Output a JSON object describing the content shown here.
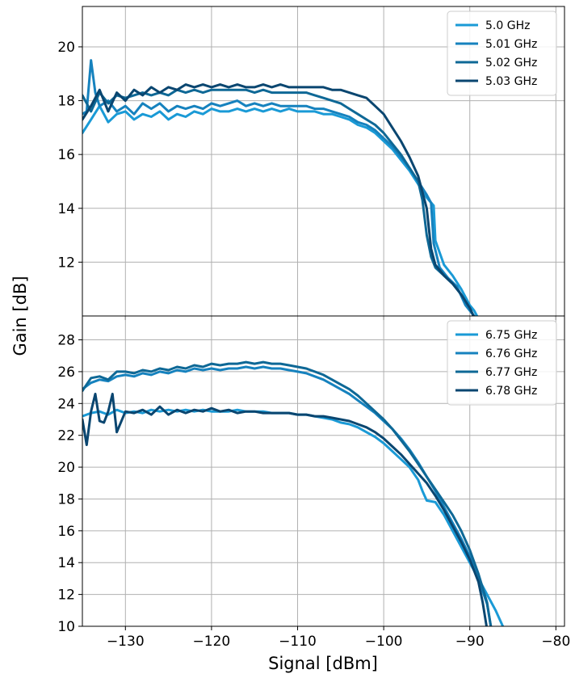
{
  "figure": {
    "ylabel": "Gain [dB]",
    "xlabel": "Signal [dBm]"
  },
  "chart_data": [
    {
      "type": "line",
      "xlim": [
        -135,
        -79
      ],
      "ylim": [
        10.0,
        21.5
      ],
      "xticks": [
        -130,
        -120,
        -110,
        -100,
        -90,
        -80
      ],
      "xtick_labels": [
        "−130",
        "−120",
        "−110",
        "−100",
        "−90",
        "−80"
      ],
      "yticks": [
        12,
        14,
        16,
        18,
        20
      ],
      "ytick_labels": [
        "12",
        "14",
        "16",
        "18",
        "20"
      ],
      "grid": true,
      "legend_position": "top-right",
      "series": [
        {
          "name": "5.0 GHz",
          "color": "#1a9ad6",
          "x": [
            -135,
            -134,
            -133,
            -132,
            -131,
            -130,
            -129,
            -128,
            -127,
            -126,
            -125,
            -124,
            -123,
            -122,
            -121,
            -120,
            -119,
            -118,
            -117,
            -116,
            -115,
            -114,
            -113,
            -112,
            -111,
            -110,
            -109,
            -108,
            -107,
            -106,
            -105,
            -104,
            -103,
            -102,
            -101,
            -100,
            -99,
            -98,
            -97,
            -96,
            -95,
            -94.2,
            -94,
            -93,
            -92,
            -91,
            -90,
            -89.5,
            -88.5
          ],
          "y": [
            16.8,
            17.3,
            17.8,
            17.2,
            17.5,
            17.6,
            17.3,
            17.5,
            17.4,
            17.6,
            17.3,
            17.5,
            17.4,
            17.6,
            17.5,
            17.7,
            17.6,
            17.6,
            17.7,
            17.6,
            17.7,
            17.6,
            17.7,
            17.6,
            17.7,
            17.6,
            17.6,
            17.6,
            17.5,
            17.5,
            17.4,
            17.3,
            17.1,
            17.0,
            16.8,
            16.5,
            16.2,
            15.8,
            15.4,
            14.9,
            14.4,
            14.1,
            12.8,
            11.9,
            11.5,
            11.0,
            10.4,
            10.2,
            9.6
          ]
        },
        {
          "name": "5.01 GHz",
          "color": "#1682be",
          "x": [
            -135,
            -134.5,
            -134,
            -133.5,
            -133,
            -132,
            -131,
            -130,
            -129,
            -128,
            -127,
            -126,
            -125,
            -124,
            -123,
            -122,
            -121,
            -120,
            -119,
            -118,
            -117,
            -116,
            -115,
            -114,
            -113,
            -112,
            -111,
            -110,
            -109,
            -108,
            -107,
            -106,
            -105,
            -104,
            -103,
            -102,
            -101,
            -100,
            -99,
            -98,
            -97,
            -96,
            -95,
            -94.5,
            -94.2,
            -93.5,
            -92.5,
            -91.5,
            -90.5,
            -89.5,
            -88.5
          ],
          "y": [
            17.5,
            17.6,
            19.5,
            18.3,
            17.8,
            18.0,
            17.6,
            17.8,
            17.5,
            17.9,
            17.7,
            17.9,
            17.6,
            17.8,
            17.7,
            17.8,
            17.7,
            17.9,
            17.8,
            17.9,
            18.0,
            17.8,
            17.9,
            17.8,
            17.9,
            17.8,
            17.8,
            17.8,
            17.8,
            17.7,
            17.7,
            17.6,
            17.5,
            17.4,
            17.2,
            17.1,
            16.9,
            16.6,
            16.3,
            15.9,
            15.5,
            15.0,
            14.5,
            14.2,
            12.7,
            11.8,
            11.4,
            11.1,
            10.4,
            10.0,
            9.6
          ]
        },
        {
          "name": "5.02 GHz",
          "color": "#0e6896",
          "x": [
            -135,
            -134,
            -133,
            -132,
            -131,
            -130,
            -129,
            -128,
            -127,
            -126,
            -125,
            -124,
            -123,
            -122,
            -121,
            -120,
            -119,
            -118,
            -117,
            -116,
            -115,
            -114,
            -113,
            -112,
            -111,
            -110,
            -109,
            -108,
            -107,
            -106,
            -105,
            -104,
            -103,
            -102,
            -101,
            -100,
            -99,
            -98,
            -97,
            -96,
            -95.5,
            -95,
            -94.5,
            -94,
            -93,
            -92,
            -91,
            -90,
            -89
          ],
          "y": [
            18.2,
            17.6,
            18.3,
            17.9,
            18.2,
            18.1,
            18.2,
            18.3,
            18.2,
            18.3,
            18.2,
            18.4,
            18.3,
            18.4,
            18.3,
            18.4,
            18.4,
            18.4,
            18.4,
            18.4,
            18.3,
            18.4,
            18.3,
            18.3,
            18.3,
            18.3,
            18.3,
            18.2,
            18.1,
            18.0,
            17.9,
            17.7,
            17.5,
            17.3,
            17.1,
            16.8,
            16.4,
            16.0,
            15.5,
            15.0,
            14.3,
            13.0,
            12.2,
            11.8,
            11.5,
            11.2,
            10.8,
            10.3,
            9.6
          ]
        },
        {
          "name": "5.03 GHz",
          "color": "#0a4670",
          "x": [
            -135,
            -134,
            -133,
            -132,
            -131,
            -130,
            -129,
            -128,
            -127,
            -126,
            -125,
            -124,
            -123,
            -122,
            -121,
            -120,
            -119,
            -118,
            -117,
            -116,
            -115,
            -114,
            -113,
            -112,
            -111,
            -110,
            -109,
            -108,
            -107,
            -106,
            -105,
            -104,
            -103,
            -102,
            -101,
            -100,
            -99,
            -98,
            -97,
            -96,
            -95.5,
            -95,
            -94.5,
            -94,
            -93,
            -92,
            -91,
            -90,
            -89
          ],
          "y": [
            17.3,
            17.8,
            18.4,
            17.6,
            18.3,
            18.0,
            18.4,
            18.2,
            18.5,
            18.3,
            18.5,
            18.4,
            18.6,
            18.5,
            18.6,
            18.5,
            18.6,
            18.5,
            18.6,
            18.5,
            18.5,
            18.6,
            18.5,
            18.6,
            18.5,
            18.5,
            18.5,
            18.5,
            18.5,
            18.4,
            18.4,
            18.3,
            18.2,
            18.1,
            17.8,
            17.5,
            17.0,
            16.5,
            15.9,
            15.2,
            14.6,
            14.0,
            12.5,
            11.9,
            11.5,
            11.2,
            10.8,
            10.3,
            9.6
          ]
        }
      ]
    },
    {
      "type": "line",
      "xlim": [
        -135,
        -79
      ],
      "ylim": [
        10,
        29.5
      ],
      "xticks": [
        -130,
        -120,
        -110,
        -100,
        -90,
        -80
      ],
      "xtick_labels": [
        "−130",
        "−120",
        "−110",
        "−100",
        "−90",
        "−80"
      ],
      "yticks": [
        10,
        12,
        14,
        16,
        18,
        20,
        22,
        24,
        26,
        28
      ],
      "ytick_labels": [
        "10",
        "12",
        "14",
        "16",
        "18",
        "20",
        "22",
        "24",
        "26",
        "28"
      ],
      "grid": true,
      "legend_position": "top-right",
      "series": [
        {
          "name": "6.75 GHz",
          "color": "#1a9ad6",
          "x": [
            -135,
            -134,
            -133,
            -132,
            -131,
            -130,
            -129,
            -128,
            -127,
            -126,
            -125,
            -124,
            -123,
            -122,
            -121,
            -120,
            -119,
            -118,
            -117,
            -116,
            -115,
            -114,
            -113,
            -112,
            -111,
            -110,
            -109,
            -108,
            -107,
            -106,
            -105,
            -104,
            -103,
            -102,
            -101,
            -100,
            -99,
            -98,
            -97,
            -96,
            -95.5,
            -95,
            -94,
            -93,
            -92,
            -91,
            -90,
            -89,
            -88,
            -87,
            -86
          ],
          "y": [
            23.2,
            23.4,
            23.5,
            23.3,
            23.6,
            23.4,
            23.5,
            23.4,
            23.6,
            23.5,
            23.6,
            23.5,
            23.6,
            23.5,
            23.6,
            23.5,
            23.5,
            23.5,
            23.6,
            23.5,
            23.5,
            23.5,
            23.4,
            23.4,
            23.4,
            23.3,
            23.3,
            23.2,
            23.1,
            23.0,
            22.8,
            22.7,
            22.5,
            22.2,
            21.9,
            21.5,
            21.0,
            20.5,
            20.0,
            19.2,
            18.5,
            17.9,
            17.8,
            17.0,
            16.0,
            15.0,
            14.0,
            13.0,
            12.0,
            11.0,
            9.8
          ]
        },
        {
          "name": "6.76 GHz",
          "color": "#1682be",
          "x": [
            -135,
            -134,
            -133,
            -132,
            -131,
            -130,
            -129,
            -128,
            -127,
            -126,
            -125,
            -124,
            -123,
            -122,
            -121,
            -120,
            -119,
            -118,
            -117,
            -116,
            -115,
            -114,
            -113,
            -112,
            -111,
            -110,
            -109,
            -108,
            -107,
            -106,
            -105,
            -104,
            -103,
            -102,
            -101,
            -100,
            -99,
            -98,
            -97,
            -96,
            -95,
            -94,
            -93,
            -92,
            -91,
            -90,
            -89,
            -88,
            -87.5
          ],
          "y": [
            24.9,
            25.3,
            25.5,
            25.4,
            25.7,
            25.8,
            25.7,
            25.9,
            25.8,
            26.0,
            25.9,
            26.1,
            26.0,
            26.2,
            26.1,
            26.2,
            26.1,
            26.2,
            26.2,
            26.3,
            26.2,
            26.3,
            26.2,
            26.2,
            26.1,
            26.0,
            25.9,
            25.7,
            25.5,
            25.2,
            24.9,
            24.6,
            24.2,
            23.8,
            23.4,
            22.9,
            22.4,
            21.8,
            21.1,
            20.3,
            19.4,
            18.5,
            17.5,
            16.5,
            15.5,
            14.4,
            13.0,
            11.4,
            9.8
          ]
        },
        {
          "name": "6.77 GHz",
          "color": "#0e6896",
          "x": [
            -135,
            -134,
            -133,
            -132,
            -131,
            -130,
            -129,
            -128,
            -127,
            -126,
            -125,
            -124,
            -123,
            -122,
            -121,
            -120,
            -119,
            -118,
            -117,
            -116,
            -115,
            -114,
            -113,
            -112,
            -111,
            -110,
            -109,
            -108,
            -107,
            -106,
            -105,
            -104,
            -103,
            -102,
            -101,
            -100,
            -99,
            -98,
            -97,
            -96,
            -95,
            -94,
            -93,
            -92,
            -91,
            -90,
            -89,
            -88,
            -87.5
          ],
          "y": [
            24.8,
            25.6,
            25.7,
            25.5,
            26.0,
            26.0,
            25.9,
            26.1,
            26.0,
            26.2,
            26.1,
            26.3,
            26.2,
            26.4,
            26.3,
            26.5,
            26.4,
            26.5,
            26.5,
            26.6,
            26.5,
            26.6,
            26.5,
            26.5,
            26.4,
            26.3,
            26.2,
            26.0,
            25.8,
            25.5,
            25.2,
            24.9,
            24.5,
            24.0,
            23.5,
            23.0,
            22.4,
            21.7,
            21.0,
            20.2,
            19.4,
            18.6,
            17.8,
            17.0,
            16.0,
            14.8,
            13.3,
            11.5,
            9.8
          ]
        },
        {
          "name": "6.78 GHz",
          "color": "#0a4670",
          "x": [
            -135,
            -134.5,
            -134,
            -133.5,
            -133,
            -132.5,
            -132,
            -131.5,
            -131,
            -130,
            -129,
            -128,
            -127,
            -126,
            -125,
            -124,
            -123,
            -122,
            -121,
            -120,
            -119,
            -118,
            -117,
            -116,
            -115,
            -114,
            -113,
            -112,
            -111,
            -110,
            -109,
            -108,
            -107,
            -106,
            -105,
            -104,
            -103,
            -102,
            -101,
            -100,
            -99,
            -98,
            -97,
            -96,
            -95,
            -94,
            -93,
            -92,
            -91,
            -90,
            -89,
            -88.5,
            -88
          ],
          "y": [
            23.0,
            21.4,
            23.5,
            24.6,
            22.9,
            22.8,
            23.5,
            24.6,
            22.2,
            23.5,
            23.4,
            23.6,
            23.3,
            23.8,
            23.3,
            23.6,
            23.4,
            23.6,
            23.5,
            23.7,
            23.5,
            23.6,
            23.4,
            23.5,
            23.5,
            23.4,
            23.4,
            23.4,
            23.4,
            23.3,
            23.3,
            23.2,
            23.2,
            23.1,
            23.0,
            22.9,
            22.7,
            22.5,
            22.2,
            21.8,
            21.3,
            20.8,
            20.2,
            19.6,
            19.0,
            18.2,
            17.3,
            16.3,
            15.3,
            14.2,
            12.8,
            11.5,
            9.8
          ]
        }
      ]
    }
  ]
}
